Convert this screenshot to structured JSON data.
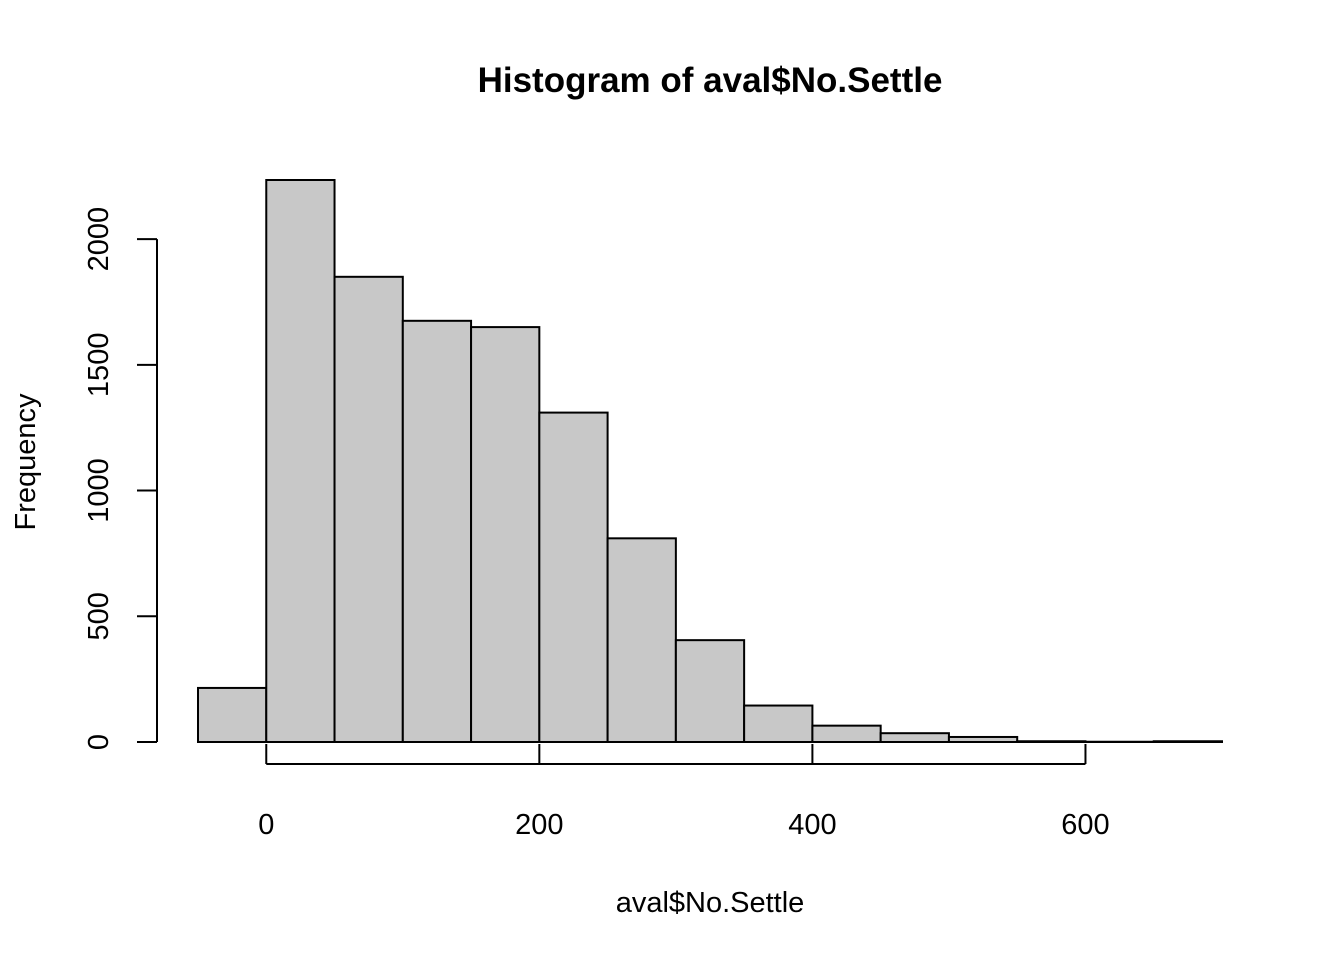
{
  "chart_data": {
    "type": "bar",
    "title": "Histogram of aval$No.Settle",
    "xlabel": "aval$No.Settle",
    "ylabel": "Frequency",
    "bin_width": 50,
    "bins": [
      {
        "x0": -50,
        "x1": 0,
        "count": 215
      },
      {
        "x0": 0,
        "x1": 50,
        "count": 2235
      },
      {
        "x0": 50,
        "x1": 100,
        "count": 1850
      },
      {
        "x0": 100,
        "x1": 150,
        "count": 1675
      },
      {
        "x0": 150,
        "x1": 200,
        "count": 1650
      },
      {
        "x0": 200,
        "x1": 250,
        "count": 1310
      },
      {
        "x0": 250,
        "x1": 300,
        "count": 810
      },
      {
        "x0": 300,
        "x1": 350,
        "count": 405
      },
      {
        "x0": 350,
        "x1": 400,
        "count": 145
      },
      {
        "x0": 400,
        "x1": 450,
        "count": 65
      },
      {
        "x0": 450,
        "x1": 500,
        "count": 35
      },
      {
        "x0": 500,
        "x1": 550,
        "count": 20
      },
      {
        "x0": 550,
        "x1": 600,
        "count": 3
      },
      {
        "x0": 600,
        "x1": 650,
        "count": 1
      },
      {
        "x0": 650,
        "x1": 700,
        "count": 3
      }
    ],
    "x_ticks": [
      0,
      200,
      400,
      600
    ],
    "y_ticks": [
      0,
      500,
      1000,
      1500,
      2000
    ],
    "xlim": [
      -50,
      700
    ],
    "ylim": [
      0,
      2235
    ],
    "grid": false,
    "legend": "none",
    "colors": {
      "bar_fill": "#c8c8c8",
      "bar_stroke": "#000000"
    }
  }
}
